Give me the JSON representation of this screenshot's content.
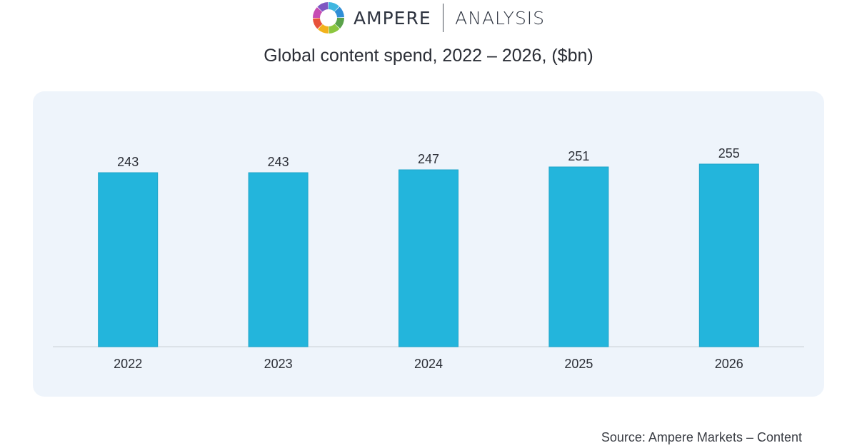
{
  "brand": {
    "name": "AMPERE",
    "sub": "ANALYSIS",
    "logo_icon": "segmented-ring-logo",
    "logo_colors": [
      "#3fb6e0",
      "#2f8ed6",
      "#5aa24a",
      "#8cc63f",
      "#f2b21c",
      "#e8513a",
      "#c64bb3",
      "#7e57c2"
    ]
  },
  "source": "Source: Ampere Markets – Content",
  "colors": {
    "bar": "#23b5dc",
    "bar_edge": "#1ea4c9",
    "panel": "#eef4fb",
    "axis": "#c9cfd6"
  },
  "chart_data": {
    "type": "bar",
    "title": "Global content spend, 2022 – 2026, ($bn)",
    "xlabel": "",
    "ylabel": "",
    "categories": [
      "2022",
      "2023",
      "2024",
      "2025",
      "2026"
    ],
    "values": [
      243,
      243,
      247,
      251,
      255
    ],
    "value_labels": [
      "243",
      "243",
      "247",
      "251",
      "255"
    ],
    "ylim": [
      0,
      255
    ],
    "grid": false,
    "legend": "none"
  }
}
